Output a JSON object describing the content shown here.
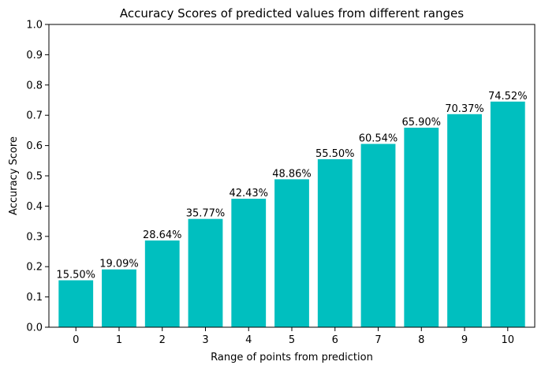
{
  "chart_data": {
    "type": "bar",
    "title": "Accuracy Scores of predicted values from different ranges",
    "xlabel": "Range of points from prediction",
    "ylabel": "Accuracy Score",
    "categories": [
      "0",
      "1",
      "2",
      "3",
      "4",
      "5",
      "6",
      "7",
      "8",
      "9",
      "10"
    ],
    "values": [
      0.155,
      0.1909,
      0.2864,
      0.3577,
      0.4243,
      0.4886,
      0.555,
      0.6054,
      0.659,
      0.7037,
      0.7452
    ],
    "data_labels": [
      "15.50%",
      "19.09%",
      "28.64%",
      "35.77%",
      "42.43%",
      "48.86%",
      "55.50%",
      "60.54%",
      "65.90%",
      "70.37%",
      "74.52%"
    ],
    "ylim": [
      0,
      1.0
    ],
    "yticks": [
      "0.0",
      "0.1",
      "0.2",
      "0.3",
      "0.4",
      "0.5",
      "0.6",
      "0.7",
      "0.8",
      "0.9",
      "1.0"
    ],
    "grid": false,
    "bar_color": "#00bfbf"
  }
}
